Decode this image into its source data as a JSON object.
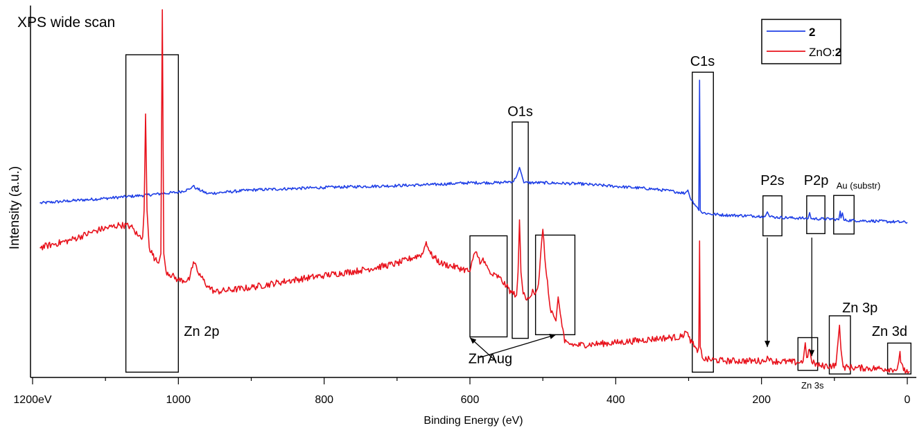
{
  "chart_data": {
    "type": "line",
    "title": "XPS wide scan",
    "xlabel": "Binding Energy (eV)",
    "ylabel": "Intensity (a.u.)",
    "xlim": [
      1200,
      0
    ],
    "x_reversed": true,
    "ylim": [
      0,
      100
    ],
    "y_ticks_shown": false,
    "x_ticks": [
      {
        "value": 1200,
        "label": "1200eV"
      },
      {
        "value": 1000,
        "label": "1000"
      },
      {
        "value": 800,
        "label": "800"
      },
      {
        "value": 600,
        "label": "600"
      },
      {
        "value": 400,
        "label": "400"
      },
      {
        "value": 200,
        "label": "200"
      },
      {
        "value": 0,
        "label": "0"
      }
    ],
    "legend": {
      "placement": "top-right",
      "entries": [
        {
          "prefix": "",
          "bold": "2",
          "series": 0
        },
        {
          "prefix": "ZnO:",
          "bold": "2",
          "series": 1
        }
      ]
    },
    "series": [
      {
        "name": "2",
        "color": "#1f3fe6",
        "noise": 0.4,
        "points": [
          [
            1190,
            47
          ],
          [
            1150,
            47.6
          ],
          [
            1100,
            48.3
          ],
          [
            1050,
            49.1
          ],
          [
            1000,
            50.0
          ],
          [
            985,
            50.8
          ],
          [
            980,
            51.7
          ],
          [
            975,
            51.0
          ],
          [
            960,
            49.6
          ],
          [
            900,
            50.6
          ],
          [
            800,
            51.3
          ],
          [
            700,
            51.8
          ],
          [
            650,
            52.1
          ],
          [
            600,
            52.6
          ],
          [
            560,
            52.6
          ],
          [
            540,
            53.0
          ],
          [
            535,
            55.0
          ],
          [
            532,
            56.8
          ],
          [
            529,
            54.8
          ],
          [
            526,
            52.6
          ],
          [
            500,
            52.6
          ],
          [
            450,
            52.3
          ],
          [
            400,
            51.6
          ],
          [
            350,
            50.9
          ],
          [
            320,
            50.2
          ],
          [
            305,
            49.7
          ],
          [
            301,
            50.6
          ],
          [
            298,
            48.5
          ],
          [
            292,
            46.8
          ],
          [
            288,
            45.8
          ],
          [
            286,
            45.0
          ],
          [
            285,
            80.8
          ],
          [
            284,
            45.0
          ],
          [
            282,
            44.4
          ],
          [
            270,
            44.0
          ],
          [
            250,
            43.7
          ],
          [
            200,
            43.4
          ],
          [
            195,
            43.3
          ],
          [
            192,
            44.6
          ],
          [
            189,
            43.3
          ],
          [
            180,
            43.1
          ],
          [
            140,
            42.8
          ],
          [
            136,
            42.8
          ],
          [
            134,
            44.4
          ],
          [
            132,
            42.7
          ],
          [
            100,
            42.6
          ],
          [
            94,
            42.4
          ],
          [
            92,
            44.8
          ],
          [
            91,
            42.9
          ],
          [
            89,
            44.3
          ],
          [
            87,
            42.3
          ],
          [
            50,
            42.1
          ],
          [
            0,
            41.7
          ]
        ]
      },
      {
        "name": "ZnO:2",
        "color": "#e8121c",
        "noise": 0.9,
        "points": [
          [
            1190,
            34.8
          ],
          [
            1150,
            36.7
          ],
          [
            1110,
            39.6
          ],
          [
            1080,
            41.0
          ],
          [
            1065,
            40.6
          ],
          [
            1055,
            37.9
          ],
          [
            1049,
            37.7
          ],
          [
            1047,
            45.0
          ],
          [
            1045,
            71.5
          ],
          [
            1043,
            45.0
          ],
          [
            1040,
            34.8
          ],
          [
            1032,
            31.5
          ],
          [
            1027,
            30.5
          ],
          [
            1024,
            33.1
          ],
          [
            1022,
            100.2
          ],
          [
            1020,
            33.1
          ],
          [
            1017,
            28.3
          ],
          [
            1000,
            25.8
          ],
          [
            985,
            25.8
          ],
          [
            982,
            29.2
          ],
          [
            978,
            30.4
          ],
          [
            974,
            28.2
          ],
          [
            960,
            24.2
          ],
          [
            950,
            22.6
          ],
          [
            900,
            23.8
          ],
          [
            850,
            25.6
          ],
          [
            800,
            27.1
          ],
          [
            750,
            28.5
          ],
          [
            700,
            30.4
          ],
          [
            665,
            33.0
          ],
          [
            660,
            36.4
          ],
          [
            654,
            33.0
          ],
          [
            640,
            30.4
          ],
          [
            610,
            28.9
          ],
          [
            600,
            28.2
          ],
          [
            596,
            31.5
          ],
          [
            592,
            33.6
          ],
          [
            585,
            30.6
          ],
          [
            582,
            31.9
          ],
          [
            578,
            29.9
          ],
          [
            572,
            27.5
          ],
          [
            560,
            26.6
          ],
          [
            550,
            24.1
          ],
          [
            543,
            22.4
          ],
          [
            536,
            21.7
          ],
          [
            534,
            28.0
          ],
          [
            532,
            42.4
          ],
          [
            530,
            28.0
          ],
          [
            527,
            22.0
          ],
          [
            522,
            20.3
          ],
          [
            518,
            21.0
          ],
          [
            514,
            23.3
          ],
          [
            510,
            22.2
          ],
          [
            506,
            24.8
          ],
          [
            500,
            39.8
          ],
          [
            496,
            29.1
          ],
          [
            490,
            18.2
          ],
          [
            485,
            15.9
          ],
          [
            482,
            14.6
          ],
          [
            479,
            21.2
          ],
          [
            476,
            16.5
          ],
          [
            470,
            8.6
          ],
          [
            455,
            7.9
          ],
          [
            400,
            8.6
          ],
          [
            340,
            9.8
          ],
          [
            310,
            10.2
          ],
          [
            304,
            11.7
          ],
          [
            300,
            10.2
          ],
          [
            295,
            8.5
          ],
          [
            288,
            5.9
          ],
          [
            286,
            7.4
          ],
          [
            285,
            36.6
          ],
          [
            284,
            7.4
          ],
          [
            280,
            4.1
          ],
          [
            250,
            3.6
          ],
          [
            196,
            3.6
          ],
          [
            192,
            4.9
          ],
          [
            189,
            3.6
          ],
          [
            150,
            3.2
          ],
          [
            143,
            3.4
          ],
          [
            140,
            8.6
          ],
          [
            138,
            4.5
          ],
          [
            134,
            6.8
          ],
          [
            131,
            3.2
          ],
          [
            120,
            2.2
          ],
          [
            98,
            2.3
          ],
          [
            96,
            6.8
          ],
          [
            93,
            13.4
          ],
          [
            91,
            6.8
          ],
          [
            88,
            1.9
          ],
          [
            70,
            1.7
          ],
          [
            40,
            1.5
          ],
          [
            14,
            1.3
          ],
          [
            12,
            3.2
          ],
          [
            10,
            6.2
          ],
          [
            9,
            3.2
          ],
          [
            5,
            0.9
          ],
          [
            -3,
            0.7
          ]
        ]
      }
    ],
    "annotations": [
      {
        "text": "Zn 2p",
        "box_x": [
          1072,
          1000
        ],
        "box_y": [
          0.5,
          87.8
        ],
        "label_x": 1000,
        "label_y": 10.5
      },
      {
        "text": "O1s",
        "box_x": [
          542,
          520
        ],
        "box_y": [
          9.8,
          69.3
        ],
        "label_x": 531,
        "label_y": 71.0
      },
      {
        "text": "C1s",
        "box_x": [
          295,
          266
        ],
        "box_y": [
          0.5,
          83.0
        ],
        "label_x": 281,
        "label_y": 84.8
      },
      {
        "text": "P2s",
        "box_x": [
          198,
          172
        ],
        "box_y": [
          38.0,
          49.0
        ],
        "label_x": 185,
        "label_y": 52.0
      },
      {
        "text": "P2p",
        "box_x": [
          138,
          113
        ],
        "box_y": [
          38.6,
          49.0
        ],
        "label_x": 125,
        "label_y": 52.0
      },
      {
        "text": "Au (substr)",
        "box_x": [
          101,
          73
        ],
        "box_y": [
          38.5,
          49.1
        ],
        "label_x": 67,
        "label_y": 51.0
      },
      {
        "text": "Zn 3s",
        "box_x": [
          150,
          123
        ],
        "box_y": [
          1.0,
          10.0
        ],
        "label_x": 130,
        "label_y": -4.0
      },
      {
        "text": "Zn 3p",
        "box_x": [
          107,
          78
        ],
        "box_y": [
          0.0,
          16.0
        ],
        "label_x": 65,
        "label_y": 17.0
      },
      {
        "text": "Zn 3d",
        "box_x": [
          27,
          -5
        ],
        "box_y": [
          0.0,
          8.5
        ],
        "label_x": 0,
        "label_y": 10.5
      },
      {
        "text": "Zn Aug",
        "box_x": [
          600,
          549
        ],
        "box_y": [
          10.2,
          38.0
        ],
        "label_x": 572,
        "label_y": 3.0
      }
    ],
    "extra_boxes": [
      {
        "box_x": [
          510,
          456
        ],
        "box_y": [
          10.8,
          38.2
        ]
      }
    ],
    "arrows": [
      {
        "from": [
          564,
          3.5
        ],
        "to": [
          600,
          10.0
        ]
      },
      {
        "from": [
          587,
          4.5
        ],
        "to": [
          482,
          10.8
        ]
      },
      {
        "from": [
          192,
          37.5
        ],
        "to": [
          192,
          7.4
        ]
      },
      {
        "from": [
          131,
          37.5
        ],
        "to": [
          131,
          4.9
        ]
      }
    ]
  }
}
